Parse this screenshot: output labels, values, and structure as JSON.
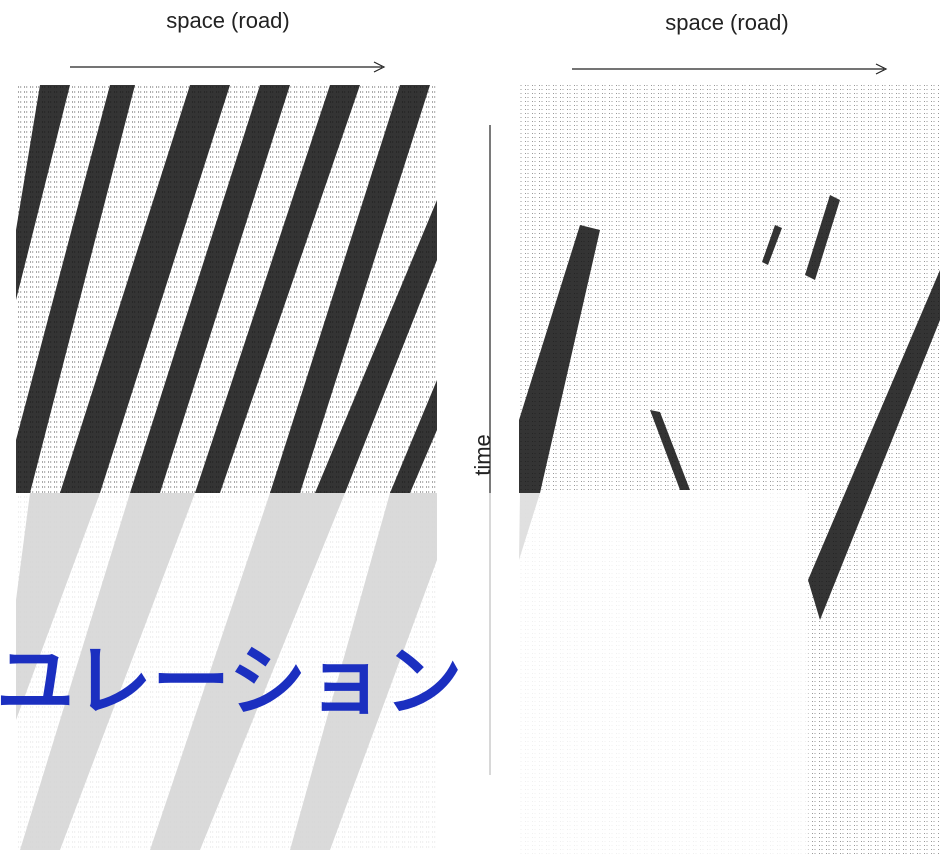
{
  "panels": [
    {
      "x_label": "space (road)"
    },
    {
      "x_label": "space (road)"
    }
  ],
  "y_label": "time",
  "overlay_text": "ユレーション"
}
